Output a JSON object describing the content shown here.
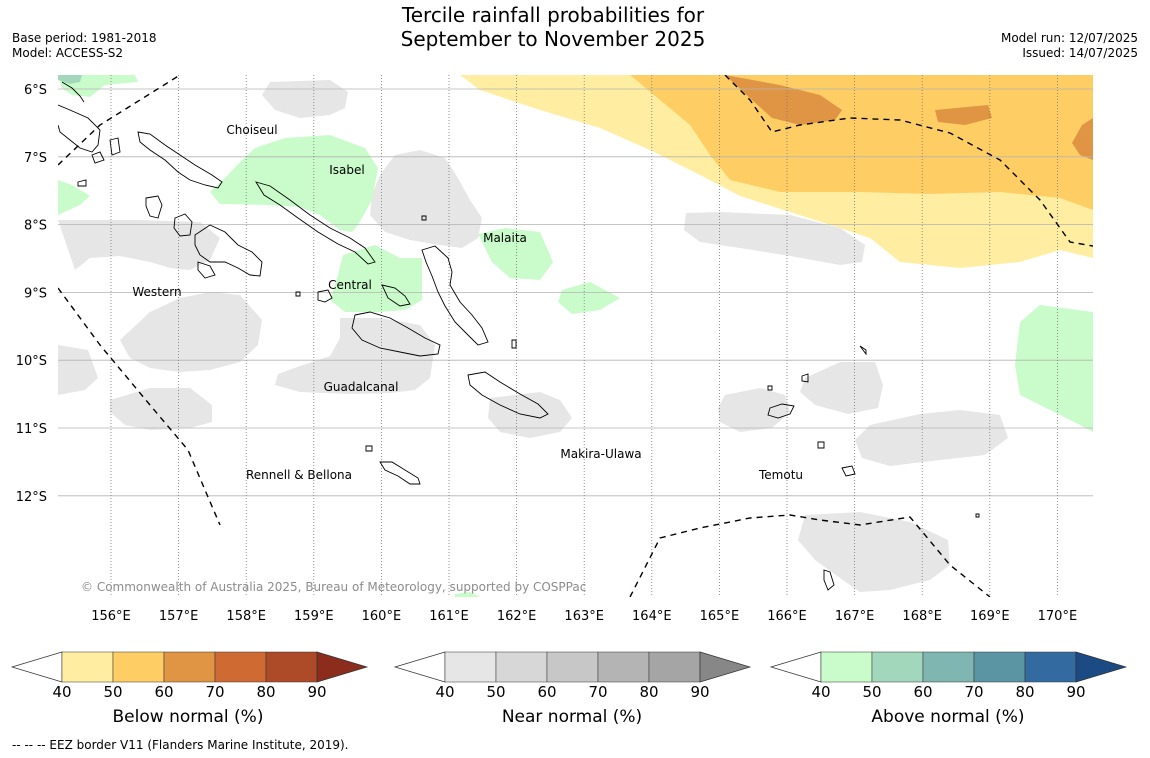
{
  "title_line1": "Tercile rainfall probabilities for",
  "title_line2": "September to November 2025",
  "base_period": "Base period: 1981-2018",
  "model": "Model: ACCESS-S2",
  "model_run": "Model run: 12/07/2025",
  "issued": "Issued: 14/07/2025",
  "copyright": "© Commonwealth of Australia 2025, Bureau of Meteorology, supported by COSPPac",
  "footer": "--  --  -- EEZ border V11 (Flanders Marine Institute, 2019).",
  "lat_labels": [
    "6°S",
    "7°S",
    "8°S",
    "9°S",
    "10°S",
    "11°S",
    "12°S"
  ],
  "lon_labels": [
    "156°E",
    "157°E",
    "158°E",
    "159°E",
    "160°E",
    "161°E",
    "162°E",
    "163°E",
    "164°E",
    "165°E",
    "166°E",
    "167°E",
    "168°E",
    "169°E",
    "170°E"
  ],
  "province_labels": [
    "Choiseul",
    "Isabel",
    "Malaita",
    "Western",
    "Central",
    "Guadalcanal",
    "Makira-Ulawa",
    "Rennell & Bellona",
    "Temotu"
  ],
  "colorbars": [
    {
      "title": "Below normal (%)",
      "ticks": [
        "40",
        "50",
        "60",
        "70",
        "80",
        "90"
      ],
      "colors": [
        "#ffeea1",
        "#fece65",
        "#e09545",
        "#d06a33",
        "#ad4a28",
        "#8b2c1c"
      ]
    },
    {
      "title": "Near normal (%)",
      "ticks": [
        "40",
        "50",
        "60",
        "70",
        "80",
        "90"
      ],
      "colors": [
        "#e6e6e6",
        "#d7d7d7",
        "#c7c7c7",
        "#b4b4b4",
        "#a5a5a5",
        "#878787"
      ]
    },
    {
      "title": "Above normal (%)",
      "ticks": [
        "40",
        "50",
        "60",
        "70",
        "80",
        "90"
      ],
      "colors": [
        "#c9fcca",
        "#a3d7bc",
        "#80b6b1",
        "#5b94a3",
        "#336aa0",
        "#1c4a82"
      ]
    }
  ]
}
